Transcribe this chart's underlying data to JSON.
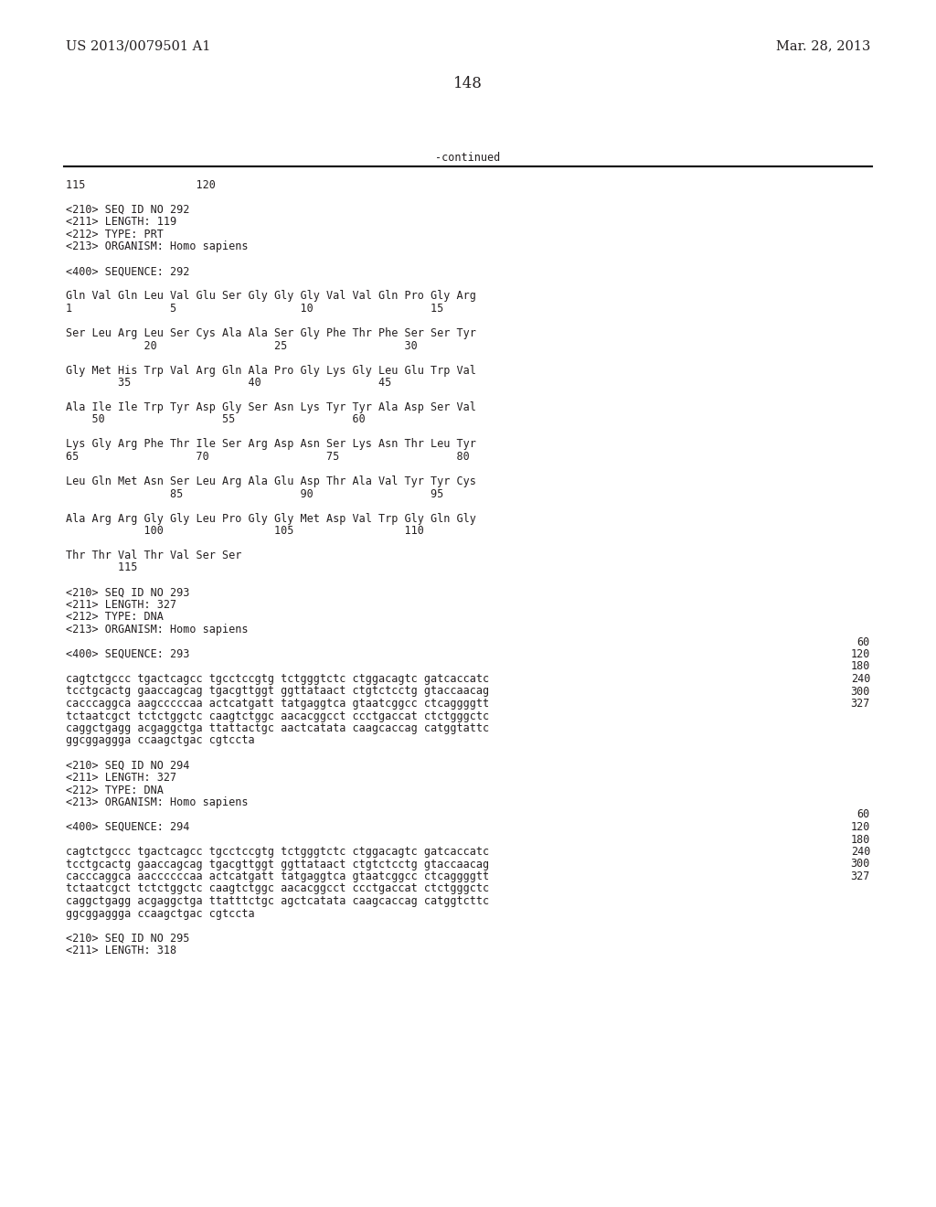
{
  "header_left": "US 2013/0079501 A1",
  "header_right": "Mar. 28, 2013",
  "page_number": "148",
  "continued_label": "-continued",
  "background_color": "#ffffff",
  "text_color": "#231f20",
  "mono_size": 8.5,
  "header_size": 10.5,
  "page_num_size": 12,
  "content": [
    "115                 120",
    "",
    "<210> SEQ ID NO 292",
    "<211> LENGTH: 119",
    "<212> TYPE: PRT",
    "<213> ORGANISM: Homo sapiens",
    "",
    "<400> SEQUENCE: 292",
    "",
    "Gln Val Gln Leu Val Glu Ser Gly Gly Gly Val Val Gln Pro Gly Arg",
    "1               5                   10                  15",
    "",
    "Ser Leu Arg Leu Ser Cys Ala Ala Ser Gly Phe Thr Phe Ser Ser Tyr",
    "            20                  25                  30",
    "",
    "Gly Met His Trp Val Arg Gln Ala Pro Gly Lys Gly Leu Glu Trp Val",
    "        35                  40                  45",
    "",
    "Ala Ile Ile Trp Tyr Asp Gly Ser Asn Lys Tyr Tyr Ala Asp Ser Val",
    "    50                  55                  60",
    "",
    "Lys Gly Arg Phe Thr Ile Ser Arg Asp Asn Ser Lys Asn Thr Leu Tyr",
    "65                  70                  75                  80",
    "",
    "Leu Gln Met Asn Ser Leu Arg Ala Glu Asp Thr Ala Val Tyr Tyr Cys",
    "                85                  90                  95",
    "",
    "Ala Arg Arg Gly Gly Leu Pro Gly Gly Met Asp Val Trp Gly Gln Gly",
    "            100                 105                 110",
    "",
    "Thr Thr Val Thr Val Ser Ser",
    "        115",
    "",
    "<210> SEQ ID NO 293",
    "<211> LENGTH: 327",
    "<212> TYPE: DNA",
    "<213> ORGANISM: Homo sapiens",
    "",
    "<400> SEQUENCE: 293",
    "",
    "cagtctgccc tgactcagcc tgcctccgtg tctgggtctc ctggacagtc gatcaccatc",
    "tcctgcactg gaaccagcag tgacgttggt ggttataact ctgtctcctg gtaccaacag",
    "cacccaggca aagcccccaa actcatgatt tatgaggtca gtaatcggcc ctcaggggtt",
    "tctaatcgct tctctggctc caagtctggc aacacggcct ccctgaccat ctctgggctc",
    "caggctgagg acgaggctga ttattactgc aactcatata caagcaccag catggtattc",
    "ggcggaggga ccaagctgac cgtccta",
    "",
    "<210> SEQ ID NO 294",
    "<211> LENGTH: 327",
    "<212> TYPE: DNA",
    "<213> ORGANISM: Homo sapiens",
    "",
    "<400> SEQUENCE: 294",
    "",
    "cagtctgccc tgactcagcc tgcctccgtg tctgggtctc ctggacagtc gatcaccatc",
    "tcctgcactg gaaccagcag tgacgttggt ggttataact ctgtctcctg gtaccaacag",
    "cacccaggca aaccccccaa actcatgatt tatgaggtca gtaatcggcc ctcaggggtt",
    "tctaatcgct tctctggctc caagtctggc aacacggcct ccctgaccat ctctgggctc",
    "caggctgagg acgaggctga ttatttctgc agctcatata caagcaccag catggtcttc",
    "ggcggaggga ccaagctgac cgtccta",
    "",
    "<210> SEQ ID NO 295",
    "<211> LENGTH: 318"
  ],
  "seq_numbers": {
    "37": "60",
    "38": "120",
    "39": "180",
    "40": "240",
    "41": "300",
    "42": "327",
    "51": "60",
    "52": "120",
    "53": "180",
    "54": "240",
    "55": "300",
    "56": "327"
  }
}
